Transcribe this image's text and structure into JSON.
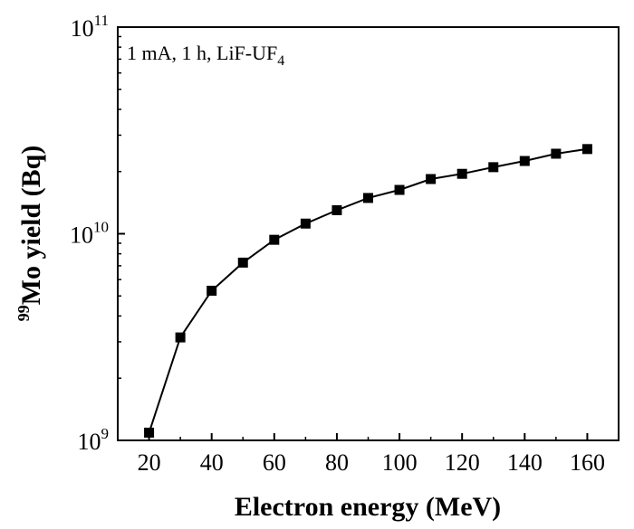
{
  "chart_data": {
    "type": "line",
    "title": "",
    "annotation": {
      "text": "1 mA, 1 h, LiF-UF",
      "subscript": "4"
    },
    "xlabel": "Electron energy (MeV)",
    "ylabel": {
      "superscript": "99",
      "text": "Mo yield (Bq)"
    },
    "xlim": [
      10,
      170
    ],
    "ylim": [
      1000000000,
      100000000000
    ],
    "yscale": "log",
    "x_ticks": [
      20,
      40,
      60,
      80,
      100,
      120,
      140,
      160
    ],
    "y_ticks": [
      {
        "value": 1000000000,
        "base": "10",
        "exp": "9"
      },
      {
        "value": 10000000000,
        "base": "10",
        "exp": "10"
      },
      {
        "value": 100000000000,
        "base": "10",
        "exp": "11"
      }
    ],
    "grid": false,
    "legend": "none",
    "marker": "square",
    "color": "#000000",
    "series": [
      {
        "x": [
          20,
          30,
          40,
          50,
          60,
          70,
          80,
          90,
          100,
          110,
          120,
          130,
          140,
          150,
          160
        ],
        "values": [
          1090000000,
          3150000000,
          5300000000,
          7250000000,
          9350000000,
          11200000000,
          13000000000,
          14900000000,
          16300000000,
          18400000000,
          19500000000,
          21000000000,
          22500000000,
          24400000000,
          25700000000
        ]
      }
    ]
  }
}
